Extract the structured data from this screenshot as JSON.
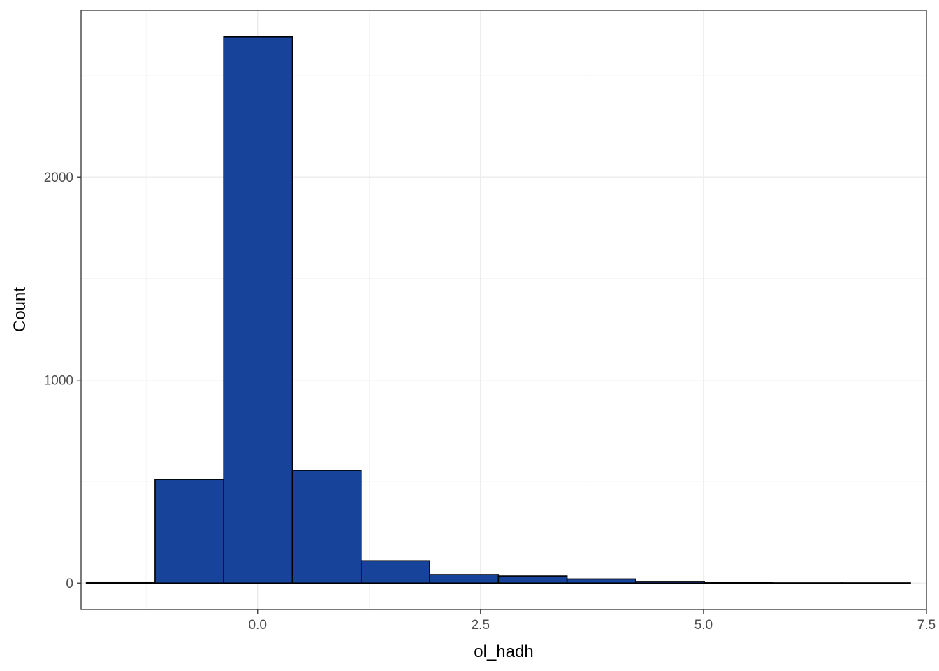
{
  "chart_data": {
    "type": "bar",
    "subtype": "histogram",
    "xlabel": "ol_hadh",
    "ylabel": "Count",
    "xlim": [
      -1.98,
      7.5
    ],
    "ylim": [
      -130,
      2820
    ],
    "x_ticks": [
      0.0,
      2.5,
      5.0,
      7.5
    ],
    "x_tick_labels": [
      "0.0",
      "2.5",
      "5.0",
      "7.5"
    ],
    "y_ticks": [
      0,
      1000,
      2000
    ],
    "y_tick_labels": [
      "0",
      "1000",
      "2000"
    ],
    "grid": true,
    "bin_width": 0.77,
    "bins": [
      {
        "x0": -1.92,
        "x1": -1.15,
        "count": 5
      },
      {
        "x0": -1.15,
        "x1": -0.38,
        "count": 510
      },
      {
        "x0": -0.38,
        "x1": 0.39,
        "count": 2690
      },
      {
        "x0": 0.39,
        "x1": 1.16,
        "count": 555
      },
      {
        "x0": 1.16,
        "x1": 1.93,
        "count": 110
      },
      {
        "x0": 1.93,
        "x1": 2.7,
        "count": 42
      },
      {
        "x0": 2.7,
        "x1": 3.47,
        "count": 35
      },
      {
        "x0": 3.47,
        "x1": 4.24,
        "count": 20
      },
      {
        "x0": 4.24,
        "x1": 5.01,
        "count": 8
      },
      {
        "x0": 5.01,
        "x1": 5.78,
        "count": 4
      },
      {
        "x0": 5.78,
        "x1": 6.55,
        "count": 1
      },
      {
        "x0": 6.55,
        "x1": 7.32,
        "count": 1
      }
    ],
    "fill_color": "#17449a",
    "outline_color": "#000000"
  }
}
